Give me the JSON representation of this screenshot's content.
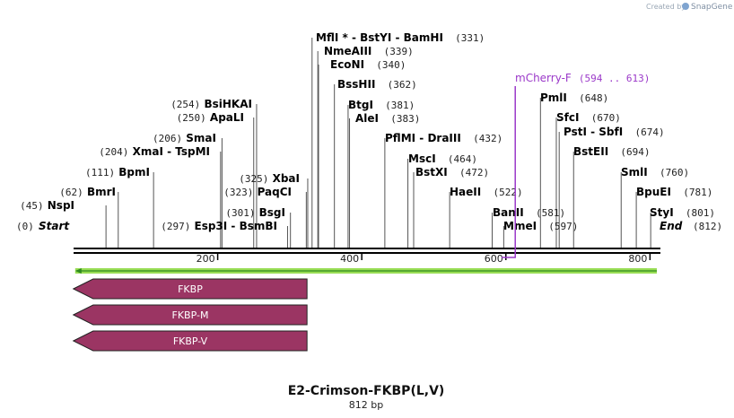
{
  "map": {
    "name": "E2-Crimson-FKBP(L,V)",
    "length_label": "812 bp",
    "total_bp": 812,
    "credit_prefix": "Created by",
    "credit_brand": "SnapGene",
    "start_label": "Start",
    "start_pos": "(0)",
    "end_label": "End",
    "end_pos": "(812)",
    "ruler_ticks": [
      "200",
      "400",
      "600",
      "800"
    ]
  },
  "sites": [
    {
      "id": "nspi",
      "pos": 45,
      "parts": [
        {
          "t": "(45)",
          "c": "num"
        },
        {
          "t": " NspI",
          "c": "enz"
        }
      ]
    },
    {
      "id": "bmri",
      "pos": 62,
      "parts": [
        {
          "t": "(62)",
          "c": "num"
        },
        {
          "t": " BmrI",
          "c": "enz"
        }
      ]
    },
    {
      "id": "bpmi",
      "pos": 111,
      "parts": [
        {
          "t": "(111)",
          "c": "num"
        },
        {
          "t": " BpmI",
          "c": "enz"
        }
      ]
    },
    {
      "id": "xmai",
      "pos": 204,
      "parts": [
        {
          "t": "(204)",
          "c": "num"
        },
        {
          "t": " XmaI",
          "c": "enz"
        },
        {
          "t": " - ",
          "c": "enz"
        },
        {
          "t": "TspMI",
          "c": "enz"
        }
      ]
    },
    {
      "id": "smai",
      "pos": 206,
      "parts": [
        {
          "t": "(206)",
          "c": "num"
        },
        {
          "t": " SmaI",
          "c": "enz"
        }
      ]
    },
    {
      "id": "apali",
      "pos": 250,
      "parts": [
        {
          "t": "(250)",
          "c": "num"
        },
        {
          "t": " ApaLI",
          "c": "enz"
        }
      ]
    },
    {
      "id": "bsihkai",
      "pos": 254,
      "parts": [
        {
          "t": "(254)",
          "c": "num"
        },
        {
          "t": " BsiHKAI",
          "c": "enz"
        }
      ]
    },
    {
      "id": "esp3i",
      "pos": 297,
      "parts": [
        {
          "t": "(297)",
          "c": "num"
        },
        {
          "t": " Esp3I",
          "c": "enz"
        },
        {
          "t": " - ",
          "c": "enz"
        },
        {
          "t": "BsmBI",
          "c": "enz"
        }
      ]
    },
    {
      "id": "bsgi",
      "pos": 301,
      "parts": [
        {
          "t": "(301)",
          "c": "num"
        },
        {
          "t": " BsgI",
          "c": "enz"
        }
      ]
    },
    {
      "id": "paqci",
      "pos": 323,
      "parts": [
        {
          "t": "(323)",
          "c": "num"
        },
        {
          "t": " PaqCI",
          "c": "enz"
        }
      ]
    },
    {
      "id": "xbai",
      "pos": 325,
      "parts": [
        {
          "t": "(325)",
          "c": "num"
        },
        {
          "t": " XbaI",
          "c": "enz"
        }
      ]
    },
    {
      "id": "mfli",
      "pos": 331,
      "parts": [
        {
          "t": "MflI",
          "c": "enz"
        },
        {
          "t": " * ",
          "c": "enz"
        },
        {
          "t": "- ",
          "c": "enz"
        },
        {
          "t": "BstYI",
          "c": "enz"
        },
        {
          "t": " - ",
          "c": "enz"
        },
        {
          "t": "BamHI",
          "c": "enz"
        },
        {
          "t": "  (331)",
          "c": "num"
        }
      ]
    },
    {
      "id": "nmeaiii",
      "pos": 339,
      "parts": [
        {
          "t": "NmeAIII",
          "c": "enz"
        },
        {
          "t": "  (339)",
          "c": "num"
        }
      ]
    },
    {
      "id": "econi",
      "pos": 340,
      "parts": [
        {
          "t": "EcoNI",
          "c": "enz"
        },
        {
          "t": "  (340)",
          "c": "num"
        }
      ]
    },
    {
      "id": "bsshii",
      "pos": 362,
      "parts": [
        {
          "t": "BssHII",
          "c": "enz"
        },
        {
          "t": "  (362)",
          "c": "num"
        }
      ]
    },
    {
      "id": "btgi",
      "pos": 381,
      "parts": [
        {
          "t": "BtgI",
          "c": "enz"
        },
        {
          "t": "  (381)",
          "c": "num"
        }
      ]
    },
    {
      "id": "alei",
      "pos": 383,
      "parts": [
        {
          "t": "AleI",
          "c": "enz"
        },
        {
          "t": "  (383)",
          "c": "num"
        }
      ]
    },
    {
      "id": "pflmi",
      "pos": 432,
      "parts": [
        {
          "t": "PflMI",
          "c": "enz"
        },
        {
          "t": " - ",
          "c": "enz"
        },
        {
          "t": "DraIII",
          "c": "enz"
        },
        {
          "t": "  (432)",
          "c": "num"
        }
      ]
    },
    {
      "id": "msci",
      "pos": 464,
      "parts": [
        {
          "t": "MscI",
          "c": "enz"
        },
        {
          "t": "  (464)",
          "c": "num"
        }
      ]
    },
    {
      "id": "bstxi",
      "pos": 472,
      "parts": [
        {
          "t": "BstXI",
          "c": "enz"
        },
        {
          "t": "  (472)",
          "c": "num"
        }
      ]
    },
    {
      "id": "haeii",
      "pos": 522,
      "parts": [
        {
          "t": "HaeII",
          "c": "enz"
        },
        {
          "t": "  (522)",
          "c": "num"
        }
      ]
    },
    {
      "id": "banii",
      "pos": 581,
      "parts": [
        {
          "t": "BanII",
          "c": "enz"
        },
        {
          "t": "  (581)",
          "c": "num"
        }
      ]
    },
    {
      "id": "mmei",
      "pos": 597,
      "parts": [
        {
          "t": "MmeI",
          "c": "enz"
        },
        {
          "t": "  (597)",
          "c": "num"
        }
      ]
    },
    {
      "id": "pmli",
      "pos": 648,
      "parts": [
        {
          "t": "PmlI",
          "c": "enz"
        },
        {
          "t": "  (648)",
          "c": "num"
        }
      ]
    },
    {
      "id": "sfci",
      "pos": 670,
      "parts": [
        {
          "t": "SfcI",
          "c": "enz"
        },
        {
          "t": "  (670)",
          "c": "num"
        }
      ]
    },
    {
      "id": "psti",
      "pos": 674,
      "parts": [
        {
          "t": "PstI",
          "c": "enz"
        },
        {
          "t": " - ",
          "c": "enz"
        },
        {
          "t": "SbfI",
          "c": "enz"
        },
        {
          "t": "  (674)",
          "c": "num"
        }
      ]
    },
    {
      "id": "bsteii",
      "pos": 694,
      "parts": [
        {
          "t": "BstEII",
          "c": "enz"
        },
        {
          "t": "  (694)",
          "c": "num"
        }
      ]
    },
    {
      "id": "smli",
      "pos": 760,
      "parts": [
        {
          "t": "SmlI",
          "c": "enz"
        },
        {
          "t": "  (760)",
          "c": "num"
        }
      ]
    },
    {
      "id": "bpuei",
      "pos": 781,
      "parts": [
        {
          "t": "BpuEI",
          "c": "enz"
        },
        {
          "t": "  (781)",
          "c": "num"
        }
      ]
    },
    {
      "id": "styi",
      "pos": 801,
      "parts": [
        {
          "t": "StyI",
          "c": "enz"
        },
        {
          "t": "  (801)",
          "c": "num"
        }
      ]
    }
  ],
  "features": [
    {
      "id": "fkbp",
      "label": "FKBP",
      "start": 1,
      "end": 324,
      "direction": "reverse",
      "color": "#9b3563"
    },
    {
      "id": "fkbp-m",
      "label": "FKBP-M",
      "start": 1,
      "end": 324,
      "direction": "reverse",
      "color": "#9b3563"
    },
    {
      "id": "fkbp-v",
      "label": "FKBP-V",
      "start": 1,
      "end": 324,
      "direction": "reverse",
      "color": "#9b3563"
    }
  ],
  "orf": {
    "start": 1,
    "end": 812,
    "direction": "reverse",
    "color": "#99dd55",
    "line_color": "#2f8a1f"
  },
  "primer": {
    "label": "mCherry-F",
    "range": "(594 .. 613)",
    "start": 594,
    "end": 613,
    "color": "#9b39c9"
  },
  "colors": {
    "backbone": "#000000",
    "leader": "#555555"
  }
}
